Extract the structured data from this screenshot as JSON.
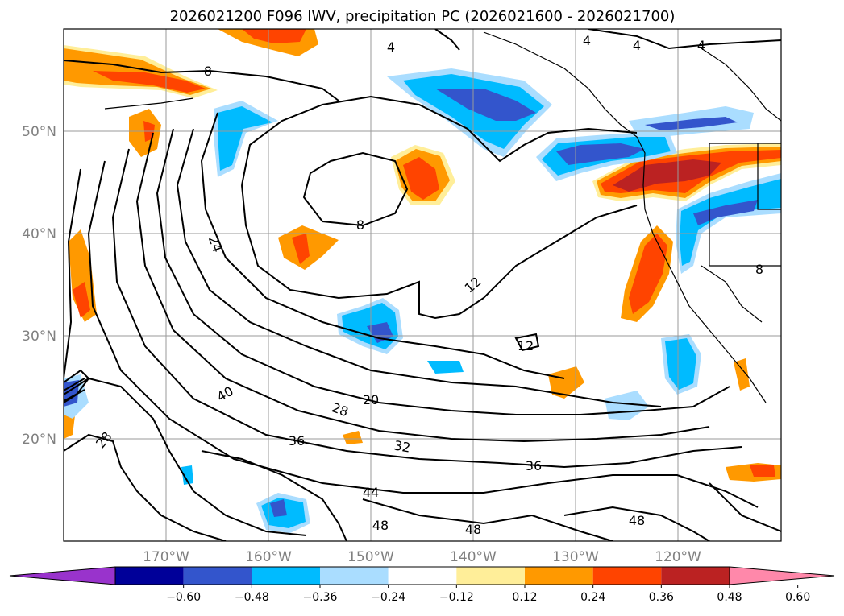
{
  "title": "2026021200 F096 IWV, precipitation PC (2026021600 - 2026021700)",
  "lat_labels": [
    "50°N",
    "40°N",
    "30°N",
    "20°N"
  ],
  "lon_labels": [
    "170°W",
    "160°W",
    "150°W",
    "140°W",
    "130°W",
    "120°W"
  ],
  "contour_labels": [
    "4",
    "4",
    "4",
    "4",
    "8",
    "8",
    "8",
    "24",
    "12",
    "12",
    "20",
    "28",
    "28",
    "32",
    "36",
    "36",
    "40",
    "44",
    "48",
    "48",
    "48"
  ],
  "colorbar": {
    "ticks": [
      "−0.60",
      "−0.48",
      "−0.36",
      "−0.24",
      "−0.12",
      "0.12",
      "0.24",
      "0.36",
      "0.48",
      "0.60"
    ],
    "colors": [
      "#9933cc",
      "#000099",
      "#3355cc",
      "#00bbff",
      "#aaddff",
      "#ffffff",
      "#ffee99",
      "#ff9900",
      "#ff4400",
      "#bb2222",
      "#ff88aa"
    ]
  }
}
